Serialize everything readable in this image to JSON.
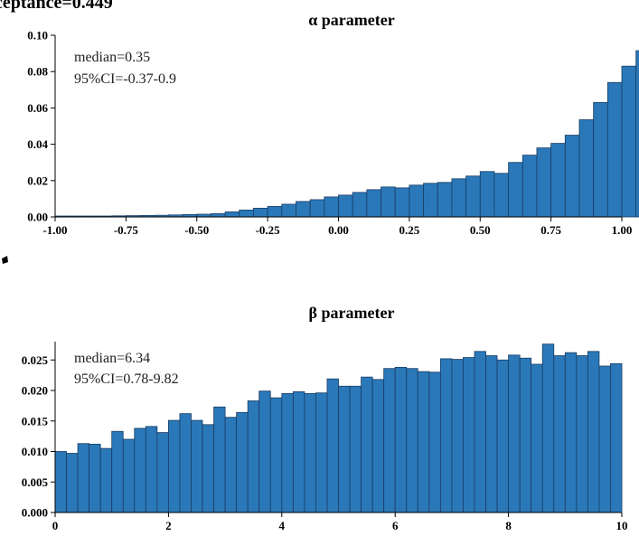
{
  "header": {
    "text": "ceptance=0.449"
  },
  "chart_data": [
    {
      "type": "bar",
      "title": "α parameter",
      "xlim": [
        -1.0,
        1.0
      ],
      "ylim": [
        0,
        0.1
      ],
      "xticks": [
        -1.0,
        -0.75,
        -0.5,
        -0.25,
        0.0,
        0.25,
        0.5,
        0.75,
        1.0
      ],
      "xtick_labels": [
        "-1.00",
        "-0.75",
        "-0.50",
        "-0.25",
        "0.00",
        "0.25",
        "0.50",
        "0.75",
        "1.00"
      ],
      "yticks": [
        0,
        0.02,
        0.04,
        0.06,
        0.08,
        0.1
      ],
      "ytick_labels": [
        "0.00",
        "0.02",
        "0.04",
        "0.06",
        "0.08",
        "0.10"
      ],
      "bin_start": -1.0,
      "bin_width": 0.05,
      "values": [
        0.0005,
        0.0005,
        0.0005,
        0.0005,
        0.0006,
        0.0007,
        0.0008,
        0.0009,
        0.0011,
        0.0013,
        0.0015,
        0.0018,
        0.0028,
        0.0038,
        0.0048,
        0.0058,
        0.007,
        0.0085,
        0.0095,
        0.011,
        0.012,
        0.0135,
        0.015,
        0.0165,
        0.016,
        0.0175,
        0.0185,
        0.019,
        0.021,
        0.0225,
        0.025,
        0.024,
        0.03,
        0.034,
        0.038,
        0.0405,
        0.045,
        0.0535,
        0.063,
        0.074,
        0.083,
        0.0915,
        0.0985,
        0.0985
      ],
      "annotations": [
        "median=0.35",
        "95%CI=-0.37-0.9"
      ]
    },
    {
      "type": "bar",
      "title": "β parameter",
      "xlim": [
        0,
        10
      ],
      "ylim": [
        0,
        0.028
      ],
      "xticks": [
        0,
        2,
        4,
        6,
        8,
        10
      ],
      "xtick_labels": [
        "0",
        "2",
        "4",
        "6",
        "8",
        "10"
      ],
      "yticks": [
        0,
        0.005,
        0.01,
        0.015,
        0.02,
        0.025
      ],
      "ytick_labels": [
        "0.000",
        "0.005",
        "0.010",
        "0.015",
        "0.020",
        "0.025"
      ],
      "bin_start": 0,
      "bin_width": 0.2,
      "values": [
        0.01,
        0.0097,
        0.0113,
        0.0112,
        0.0105,
        0.0133,
        0.012,
        0.0138,
        0.0141,
        0.0131,
        0.0151,
        0.0162,
        0.0151,
        0.0144,
        0.0173,
        0.0156,
        0.0164,
        0.0183,
        0.0199,
        0.0188,
        0.0195,
        0.0198,
        0.0195,
        0.0196,
        0.0219,
        0.0207,
        0.0207,
        0.0222,
        0.0218,
        0.0236,
        0.0238,
        0.0236,
        0.0231,
        0.023,
        0.0252,
        0.0251,
        0.0254,
        0.0264,
        0.0257,
        0.025,
        0.0258,
        0.0253,
        0.0243,
        0.0276,
        0.0257,
        0.0262,
        0.0257,
        0.0264,
        0.024,
        0.0244
      ],
      "annotations": [
        "median=6.34",
        "95%CI=0.78-9.82"
      ]
    }
  ]
}
